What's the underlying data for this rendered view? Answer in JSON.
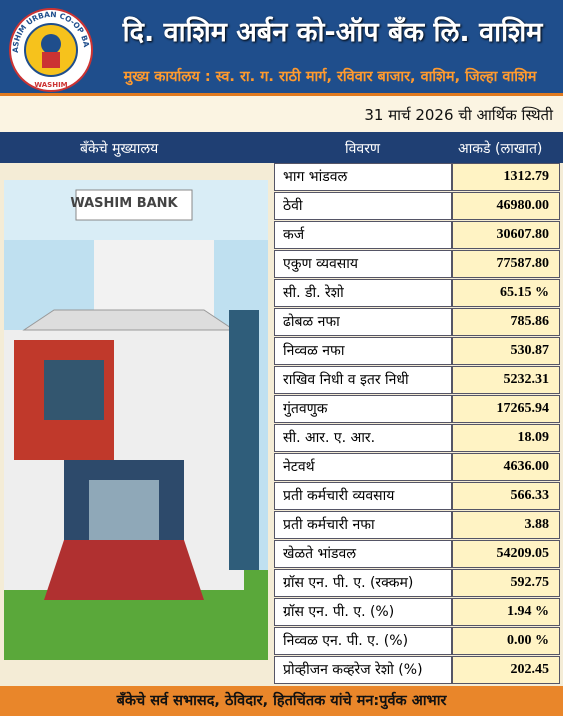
{
  "header": {
    "logo_text": "THE WASHIM URBAN CO-OP BANK LTD.",
    "logo_city": "WASHIM",
    "title": "दि. वाशिम अर्बन को-ऑप बँक लि. वाशिम",
    "address": "मुख्य कार्यालय : स्व. रा. ग. राठी मार्ग, रविवार बाजार, वाशिम, जिल्हा वाशिम"
  },
  "date_line": "31 मार्च 2026 ची आर्थिक स्थिती",
  "table": {
    "columns": [
      "बँकेचे मुख्यालय",
      "विवरण",
      "आकडे (लाखात)"
    ],
    "photo_sign": "WASHIM BANK",
    "rows": [
      [
        "भाग भांडवल",
        "1312.79"
      ],
      [
        "ठेवी",
        "46980.00"
      ],
      [
        "कर्ज",
        "30607.80"
      ],
      [
        "एकुण व्यवसाय",
        "77587.80"
      ],
      [
        "सी. डी. रेशो",
        "65.15 %"
      ],
      [
        "ढोबळ नफा",
        "785.86"
      ],
      [
        "निव्वळ नफा",
        "530.87"
      ],
      [
        "राखिव निधी व इतर निधी",
        "5232.31"
      ],
      [
        "गुंतवणुक",
        "17265.94"
      ],
      [
        "सी. आर. ए. आर.",
        "18.09"
      ],
      [
        "नेटवर्थ",
        "4636.00"
      ],
      [
        "प्रती कर्मचारी व्यवसाय",
        "566.33"
      ],
      [
        "प्रती कर्मचारी नफा",
        "3.88"
      ],
      [
        "खेळते भांडवल",
        "54209.05"
      ],
      [
        "ग्रॉस एन. पी. ए. (रक्कम)",
        "592.75"
      ],
      [
        "ग्रॉस एन. पी. ए. (%)",
        "1.94 %"
      ],
      [
        "निव्वळ एन. पी. ए. (%)",
        "0.00 %"
      ],
      [
        "प्रोव्हीजन कव्हरेज रेशो (%)",
        "202.45"
      ]
    ]
  },
  "footer": "बँकेचे सर्व सभासद, ठेविदार, हितचिंतक यांचे मन:पुर्वक आभार"
}
